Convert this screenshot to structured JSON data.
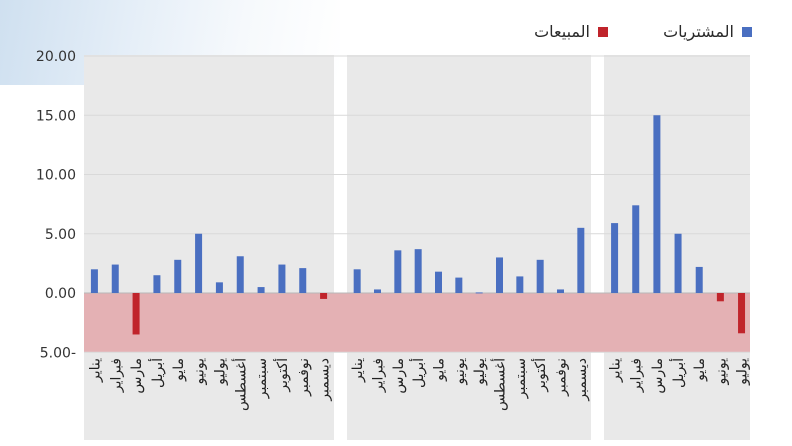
{
  "legend": {
    "purchases_label": "المشتريات",
    "sales_label": "المبيعات",
    "purchases_color": "#4a6fc1",
    "sales_color": "#c0242b"
  },
  "colors": {
    "negative_zone": "#e4b1b4",
    "panel_bg": "#e9e9e9",
    "grid": "#d9d9d9"
  },
  "chart_data": {
    "type": "bar",
    "ylim": [
      -5,
      20
    ],
    "yticks": [
      {
        "value": 20,
        "label": "20.00"
      },
      {
        "value": 15,
        "label": "15.00"
      },
      {
        "value": 10,
        "label": "10.00"
      },
      {
        "value": 5,
        "label": "5.00"
      },
      {
        "value": 0,
        "label": "0.00"
      },
      {
        "value": -5,
        "label": "5.00-"
      }
    ],
    "grid": true,
    "legend_position": "top-right",
    "panels": [
      {
        "categories": [
          "يناير",
          "فبراير",
          "مارس",
          "أبريل",
          "مايو",
          "يونيو",
          "يوليو",
          "أغسطس",
          "سبتمبر",
          "أكتوبر",
          "نوفمبر",
          "ديسمبر"
        ],
        "series": [
          {
            "name": "المشتريات",
            "values": [
              2.0,
              2.4,
              0,
              1.5,
              2.8,
              5.0,
              0.9,
              3.1,
              0.5,
              2.4,
              2.1,
              0
            ]
          },
          {
            "name": "المبيعات",
            "values": [
              0,
              0,
              -3.5,
              0,
              0,
              0,
              0,
              0,
              0,
              0,
              0,
              -0.5
            ]
          }
        ]
      },
      {
        "categories": [
          "يناير",
          "فبراير",
          "مارس",
          "أبريل",
          "مايو",
          "يونيو",
          "يوليو",
          "أغسطس",
          "سبتمبر",
          "أكتوبر",
          "نوفمبر",
          "ديسمبر"
        ],
        "series": [
          {
            "name": "المشتريات",
            "values": [
              2.0,
              0.3,
              3.6,
              3.7,
              1.8,
              1.3,
              0.05,
              3.0,
              1.4,
              2.8,
              0.3,
              5.5
            ]
          },
          {
            "name": "المبيعات",
            "values": [
              0,
              0,
              0,
              0,
              0,
              0,
              0,
              0,
              0,
              0,
              0,
              0
            ]
          }
        ]
      },
      {
        "categories": [
          "يناير",
          "فبراير",
          "مارس",
          "أبريل",
          "مايو",
          "يونيو",
          "يوليو"
        ],
        "series": [
          {
            "name": "المشتريات",
            "values": [
              5.9,
              7.4,
              15.0,
              5.0,
              2.2,
              0,
              0
            ]
          },
          {
            "name": "المبيعات",
            "values": [
              0,
              0,
              0,
              0,
              0,
              -0.7,
              -3.4
            ]
          }
        ]
      }
    ]
  }
}
